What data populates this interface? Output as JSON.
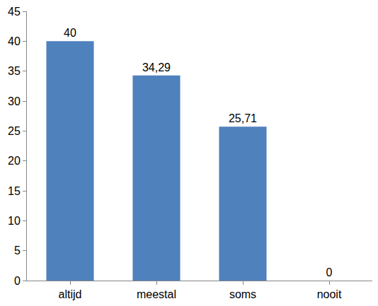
{
  "chart_data": {
    "type": "bar",
    "categories": [
      "altijd",
      "meestal",
      "soms",
      "nooit"
    ],
    "values": [
      40,
      34.29,
      25.71,
      0
    ],
    "value_labels": [
      "40",
      "34,29",
      "25,71",
      "0"
    ],
    "color": "#4f81bd",
    "ylim": [
      0,
      45
    ],
    "yticks": [
      0,
      5,
      10,
      15,
      20,
      25,
      30,
      35,
      40,
      45
    ],
    "grid": false,
    "data_labels": true
  }
}
